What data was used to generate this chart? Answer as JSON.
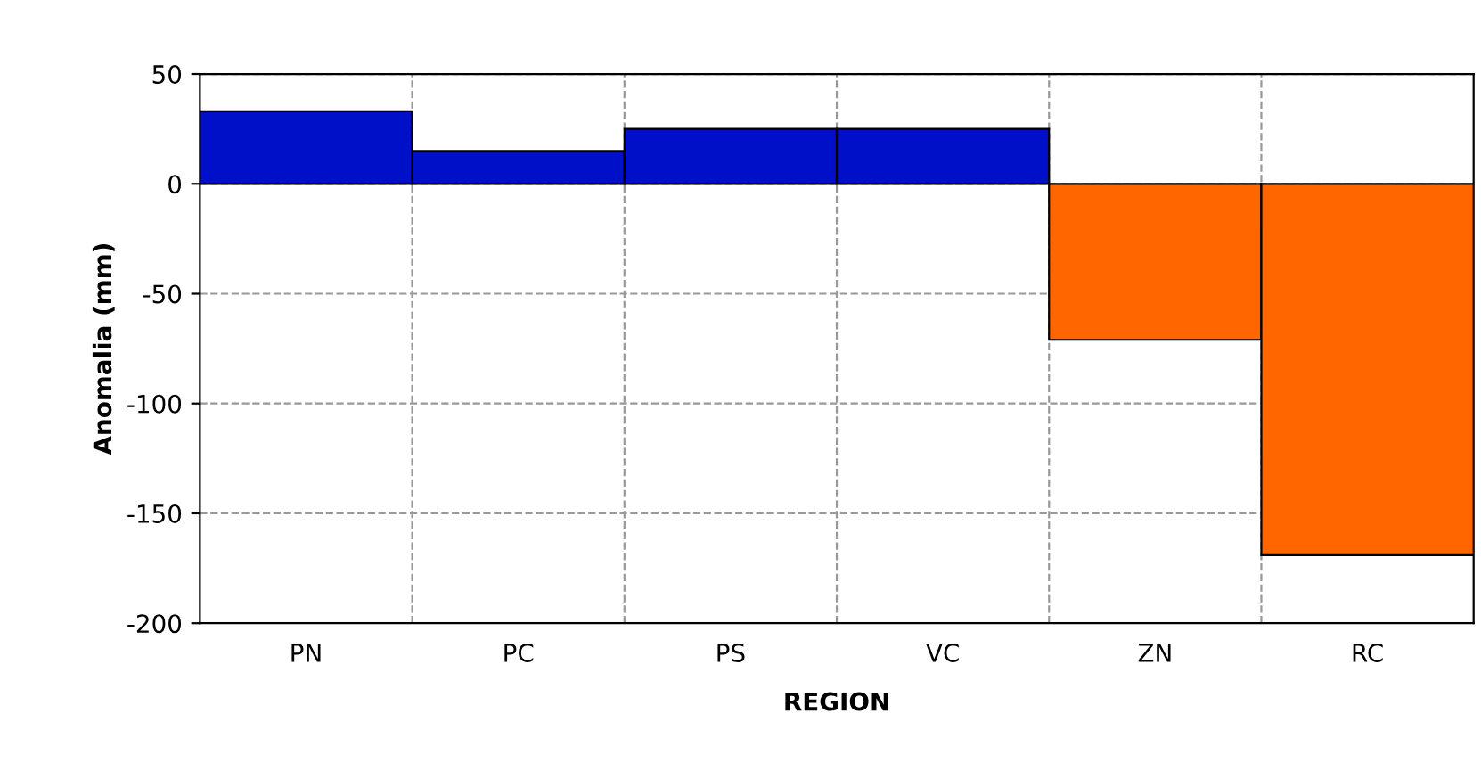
{
  "chart_data": {
    "type": "bar",
    "xlabel": "REGION",
    "ylabel": "Anomalia (mm)",
    "categories": [
      "PN",
      "PC",
      "PS",
      "VC",
      "ZN",
      "RC"
    ],
    "values": [
      33,
      15,
      25,
      25,
      -71,
      -169
    ],
    "colors": [
      "#0010c8",
      "#0010c8",
      "#0010c8",
      "#0010c8",
      "#ff6600",
      "#ff6600"
    ],
    "ylim": [
      -200,
      50
    ],
    "yticks": [
      -200,
      -150,
      -100,
      -50,
      0,
      50
    ],
    "grid": true,
    "legend": false
  }
}
